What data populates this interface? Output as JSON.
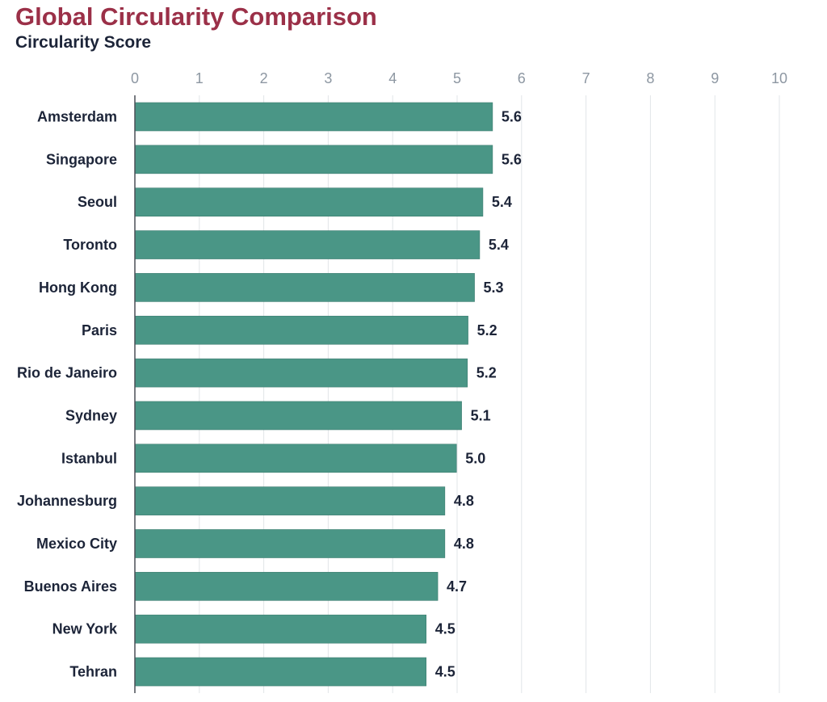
{
  "chart_data": {
    "type": "bar",
    "orientation": "horizontal",
    "title": "Global Circularity Comparison",
    "subtitle": "Circularity Score",
    "xlim": [
      0,
      10
    ],
    "x_ticks": [
      "0",
      "1",
      "2",
      "3",
      "4",
      "5",
      "6",
      "7",
      "8",
      "9",
      "10"
    ],
    "categories": [
      "Amsterdam",
      "Singapore",
      "Seoul",
      "Toronto",
      "Hong Kong",
      "Paris",
      "Rio de Janeiro",
      "Sydney",
      "Istanbul",
      "Johannesburg",
      "Mexico City",
      "Buenos Aires",
      "New York",
      "Tehran"
    ],
    "values": [
      5.55,
      5.55,
      5.4,
      5.35,
      5.27,
      5.17,
      5.16,
      5.07,
      4.99,
      4.81,
      4.81,
      4.7,
      4.52,
      4.52
    ],
    "value_labels": [
      "5.6",
      "5.6",
      "5.4",
      "5.4",
      "5.3",
      "5.2",
      "5.2",
      "5.1",
      "5.0",
      "4.8",
      "4.8",
      "4.7",
      "4.5",
      "4.5"
    ],
    "grid": true,
    "axis_position": "top",
    "bar_color": "#4a9686",
    "title_color": "#9b3048",
    "text_color": "#1c2438",
    "tick_color": "#8d97a2"
  }
}
